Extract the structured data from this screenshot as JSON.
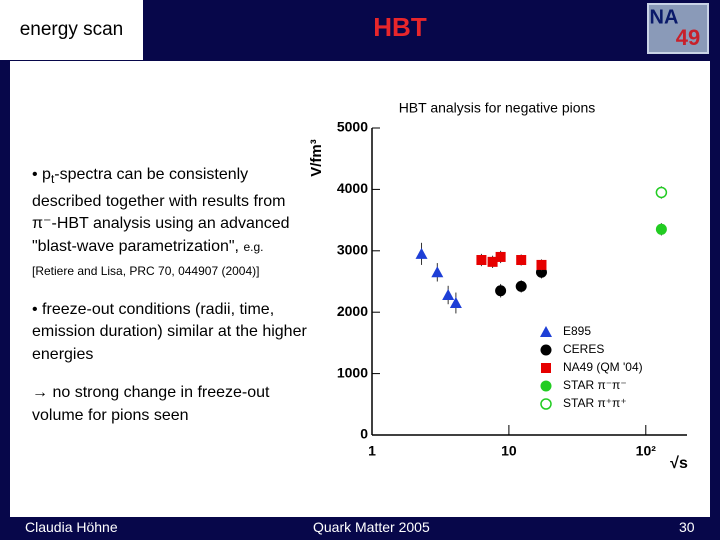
{
  "header": {
    "section": "energy scan",
    "title": "HBT",
    "logo": {
      "top": "NA",
      "bottom": "49"
    }
  },
  "body": {
    "bullets": [
      {
        "prefix": "• p",
        "subscript": "t",
        "text": "-spectra can be consistenly described together with results from π⁻-HBT analysis using an advanced \"blast-wave parametrization\",",
        "note": "e.g.",
        "reference": "[Retiere and Lisa, PRC 70, 044907 (2004)]"
      },
      {
        "text": "• freeze-out conditions (radii, time, emission duration) similar at the higher energies"
      },
      {
        "text": "→ no strong change in freeze-out volume for pions seen"
      }
    ]
  },
  "chart_data": {
    "type": "scatter",
    "title": "HBT analysis for negative pions",
    "x_label": "√s",
    "y_label": "V/fm³",
    "log_x": true,
    "xlim": [
      1,
      200
    ],
    "ylim": [
      0,
      5000
    ],
    "xticks": [
      1,
      10,
      {
        "value": 100,
        "label": "10²"
      }
    ],
    "yticks": [
      0,
      1000,
      2000,
      3000,
      4000,
      5000
    ],
    "legend": "lower right",
    "series": [
      {
        "name": "E895",
        "color": "#1e3fd6",
        "marker": "triangle",
        "x": [
          2.3,
          3.0,
          3.6,
          4.1
        ],
        "values": [
          2950,
          2650,
          2280,
          2150
        ],
        "errors": [
          180,
          150,
          150,
          170
        ]
      },
      {
        "name": "CERES",
        "color": "#000000",
        "marker": "circle",
        "x": [
          8.7,
          12.3,
          17.3
        ],
        "values": [
          2350,
          2420,
          2650
        ],
        "errors": [
          110,
          100,
          100
        ]
      },
      {
        "name": "NA49 (QM '04)",
        "color": "#e60000",
        "marker": "square",
        "x": [
          6.3,
          7.6,
          8.7,
          12.3,
          17.3
        ],
        "values": [
          2850,
          2820,
          2900,
          2850,
          2770
        ],
        "errors": [
          100,
          100,
          100,
          90,
          90
        ]
      },
      {
        "name": "STAR π⁻π⁻",
        "color": "#22cc22",
        "marker": "circle",
        "x": [
          130
        ],
        "values": [
          3350
        ],
        "errors": [
          100
        ]
      },
      {
        "name": "STAR π⁺π⁺",
        "color": "#22cc22",
        "marker": "circle-open",
        "x": [
          130
        ],
        "values": [
          3950
        ],
        "errors": [
          100
        ]
      }
    ]
  },
  "footer": {
    "author": "Claudia Höhne",
    "event": "Quark Matter 2005",
    "page": "30"
  }
}
